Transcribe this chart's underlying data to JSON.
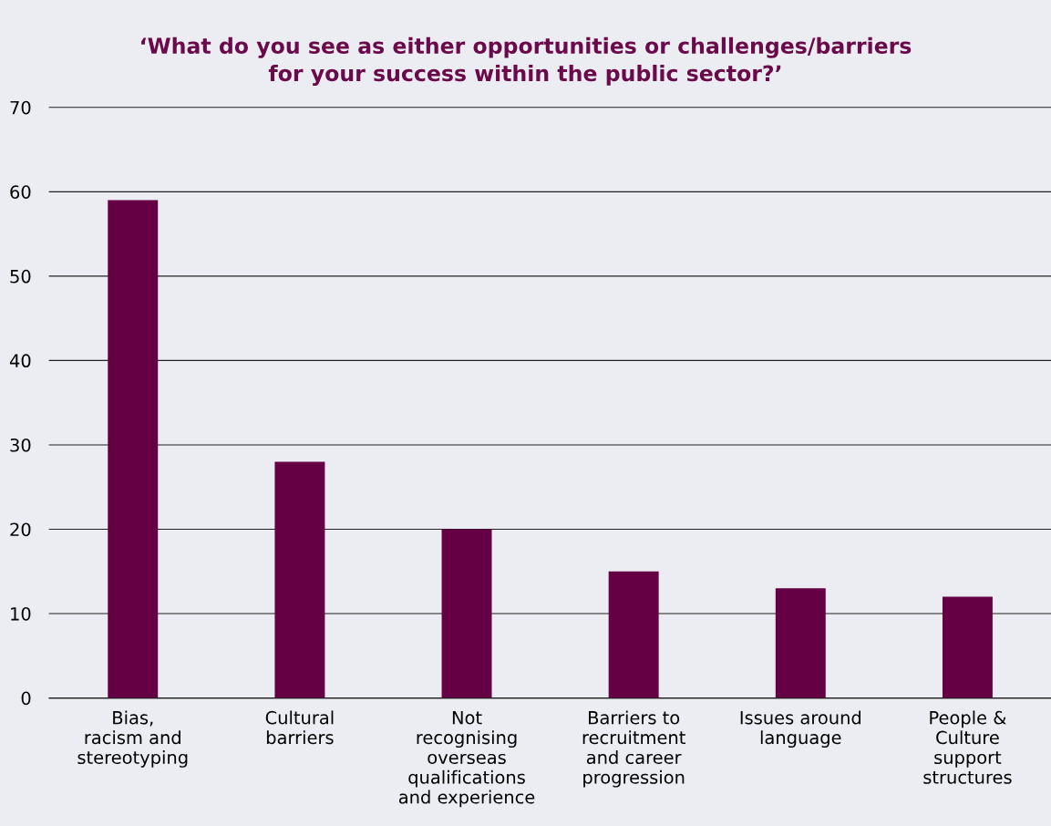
{
  "chart_data": {
    "type": "bar",
    "title": "‘What do you see as either opportunities or challenges/barriers\nfor your success within the public sector?’",
    "categories": [
      "Bias,\nracism and\nstereotyping",
      "Cultural\nbarriers",
      "Not\nrecognising\noverseas\nqualifications\nand experience",
      "Barriers to\nrecruitment\nand career\nprogression",
      "Issues around\nlanguage",
      "People &\nCulture\nsupport\nstructures"
    ],
    "values": [
      59,
      28,
      20,
      15,
      13,
      12
    ],
    "color": "#660044",
    "ylim": [
      0,
      70
    ],
    "yticks": [
      0,
      10,
      20,
      30,
      40,
      50,
      60,
      70
    ],
    "grid": "y",
    "legend": false
  }
}
